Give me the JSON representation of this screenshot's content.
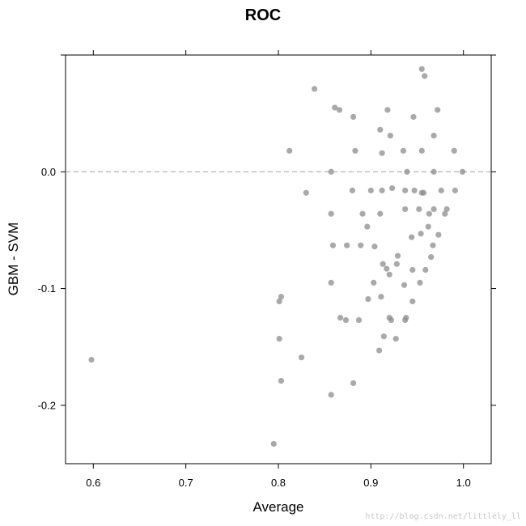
{
  "chart_data": {
    "type": "scatter",
    "title": "ROC",
    "xlabel": "Average",
    "ylabel": "GBM - SVM",
    "xlim": [
      0.57,
      1.03
    ],
    "ylim": [
      -0.25,
      0.1
    ],
    "xticks": [
      0.6,
      0.7,
      0.8,
      0.9,
      1.0
    ],
    "xtick_labels": [
      "0.6",
      "0.7",
      "0.8",
      "0.9",
      "1.0"
    ],
    "yticks": [
      -0.2,
      -0.1,
      0.0
    ],
    "ytick_labels": [
      "-0.2",
      "-0.1",
      "0.0"
    ],
    "reference_line": {
      "y": 0.0,
      "style": "dashed"
    },
    "grid": false,
    "marker_color": "#8c8c8c",
    "marker_opacity": 0.75,
    "points": [
      {
        "x": 0.598,
        "y": -0.161
      },
      {
        "x": 0.795,
        "y": -0.233
      },
      {
        "x": 0.801,
        "y": -0.143
      },
      {
        "x": 0.801,
        "y": -0.111
      },
      {
        "x": 0.803,
        "y": -0.107
      },
      {
        "x": 0.803,
        "y": -0.179
      },
      {
        "x": 0.812,
        "y": 0.018
      },
      {
        "x": 0.825,
        "y": -0.159
      },
      {
        "x": 0.83,
        "y": -0.018
      },
      {
        "x": 0.839,
        "y": 0.071
      },
      {
        "x": 0.857,
        "y": -0.095
      },
      {
        "x": 0.857,
        "y": -0.036
      },
      {
        "x": 0.857,
        "y": 0.0
      },
      {
        "x": 0.857,
        "y": -0.191
      },
      {
        "x": 0.859,
        "y": -0.063
      },
      {
        "x": 0.861,
        "y": 0.055
      },
      {
        "x": 0.866,
        "y": 0.053
      },
      {
        "x": 0.867,
        "y": -0.125
      },
      {
        "x": 0.873,
        "y": -0.127
      },
      {
        "x": 0.874,
        "y": -0.063
      },
      {
        "x": 0.88,
        "y": -0.016
      },
      {
        "x": 0.881,
        "y": 0.047
      },
      {
        "x": 0.881,
        "y": -0.181
      },
      {
        "x": 0.883,
        "y": 0.018
      },
      {
        "x": 0.887,
        "y": -0.127
      },
      {
        "x": 0.889,
        "y": -0.063
      },
      {
        "x": 0.891,
        "y": -0.036
      },
      {
        "x": 0.896,
        "y": -0.047
      },
      {
        "x": 0.897,
        "y": -0.109
      },
      {
        "x": 0.9,
        "y": -0.016
      },
      {
        "x": 0.903,
        "y": -0.095
      },
      {
        "x": 0.904,
        "y": -0.064
      },
      {
        "x": 0.909,
        "y": -0.153
      },
      {
        "x": 0.91,
        "y": 0.036
      },
      {
        "x": 0.91,
        "y": -0.036
      },
      {
        "x": 0.911,
        "y": -0.107
      },
      {
        "x": 0.912,
        "y": 0.016
      },
      {
        "x": 0.912,
        "y": -0.016
      },
      {
        "x": 0.913,
        "y": -0.079
      },
      {
        "x": 0.914,
        "y": -0.141
      },
      {
        "x": 0.917,
        "y": -0.083
      },
      {
        "x": 0.918,
        "y": 0.053
      },
      {
        "x": 0.92,
        "y": -0.088
      },
      {
        "x": 0.92,
        "y": -0.125
      },
      {
        "x": 0.921,
        "y": 0.031
      },
      {
        "x": 0.922,
        "y": -0.127
      },
      {
        "x": 0.923,
        "y": -0.014
      },
      {
        "x": 0.927,
        "y": -0.143
      },
      {
        "x": 0.928,
        "y": -0.079
      },
      {
        "x": 0.929,
        "y": -0.072
      },
      {
        "x": 0.935,
        "y": 0.018
      },
      {
        "x": 0.936,
        "y": -0.097
      },
      {
        "x": 0.937,
        "y": -0.032
      },
      {
        "x": 0.937,
        "y": -0.016
      },
      {
        "x": 0.937,
        "y": -0.127
      },
      {
        "x": 0.938,
        "y": -0.125
      },
      {
        "x": 0.939,
        "y": 0.0
      },
      {
        "x": 0.944,
        "y": -0.056
      },
      {
        "x": 0.945,
        "y": -0.111
      },
      {
        "x": 0.945,
        "y": -0.084
      },
      {
        "x": 0.946,
        "y": 0.047
      },
      {
        "x": 0.947,
        "y": -0.016
      },
      {
        "x": 0.952,
        "y": -0.032
      },
      {
        "x": 0.953,
        "y": -0.095
      },
      {
        "x": 0.954,
        "y": -0.053
      },
      {
        "x": 0.955,
        "y": 0.088
      },
      {
        "x": 0.955,
        "y": 0.018
      },
      {
        "x": 0.955,
        "y": -0.018
      },
      {
        "x": 0.957,
        "y": -0.018
      },
      {
        "x": 0.958,
        "y": 0.082
      },
      {
        "x": 0.959,
        "y": -0.084
      },
      {
        "x": 0.962,
        "y": -0.047
      },
      {
        "x": 0.963,
        "y": -0.036
      },
      {
        "x": 0.965,
        "y": -0.073
      },
      {
        "x": 0.967,
        "y": -0.063
      },
      {
        "x": 0.968,
        "y": -0.032
      },
      {
        "x": 0.968,
        "y": 0.031
      },
      {
        "x": 0.968,
        "y": 0.0
      },
      {
        "x": 0.972,
        "y": 0.053
      },
      {
        "x": 0.973,
        "y": -0.054
      },
      {
        "x": 0.976,
        "y": -0.016
      },
      {
        "x": 0.98,
        "y": -0.036
      },
      {
        "x": 0.982,
        "y": -0.032
      },
      {
        "x": 0.99,
        "y": 0.018
      },
      {
        "x": 0.991,
        "y": -0.016
      },
      {
        "x": 0.999,
        "y": 0.0
      }
    ]
  },
  "watermark": "http://blog.csdn.net/littlely_ll"
}
